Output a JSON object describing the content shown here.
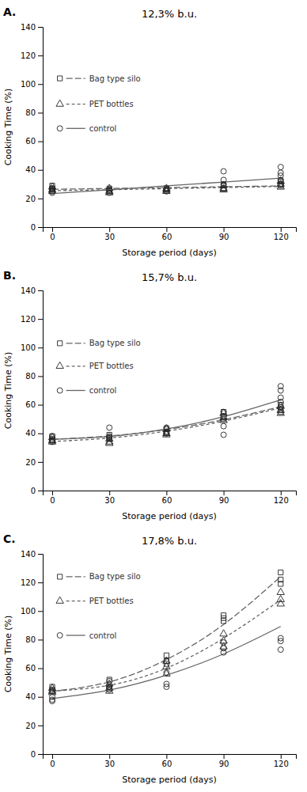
{
  "chart_data": [
    {
      "type": "line",
      "label": "A.",
      "title": "12,3% b.u.",
      "xlabel": "Storage period (days)",
      "ylabel": "Cooking Time (%)",
      "xlim": [
        -5,
        128
      ],
      "xticks": [
        0,
        30,
        60,
        90,
        120
      ],
      "ylim": [
        0,
        140
      ],
      "yticks": [
        0,
        20,
        40,
        60,
        80,
        100,
        120,
        140
      ],
      "color": "#666666",
      "legend": "upper left",
      "series": [
        {
          "name": "Bag type silo",
          "line_style": "long_dash",
          "marker": "square",
          "x": [
            0,
            30,
            60,
            90,
            120
          ],
          "values": [
            26.4,
            27.0,
            27.6,
            28.2,
            28.8
          ],
          "scatter": {
            "x": [
              0,
              0,
              0,
              30,
              30,
              30,
              60,
              60,
              60,
              90,
              90,
              90,
              120,
              120,
              120
            ],
            "y": [
              26,
              27,
              29,
              25,
              26,
              27,
              26,
              27,
              27,
              27,
              27,
              29,
              29,
              30,
              32
            ]
          },
          "legend_point": {
            "x": 4,
            "y": 104
          }
        },
        {
          "name": "PET bottles",
          "line_style": "dash",
          "marker": "triangle",
          "x": [
            0,
            30,
            60,
            90,
            120
          ],
          "values": [
            25.4,
            26.15,
            26.9,
            27.65,
            28.4
          ],
          "scatter": {
            "x": [
              0,
              0,
              0,
              30,
              30,
              30,
              60,
              60,
              60,
              90,
              90,
              90,
              120,
              120,
              120
            ],
            "y": [
              25,
              26,
              28,
              24,
              25,
              27,
              25,
              26,
              27,
              26,
              27,
              29,
              28,
              30,
              32
            ]
          },
          "legend_point": {
            "x": 4,
            "y": 86
          }
        },
        {
          "name": "control",
          "line_style": "solid",
          "marker": "circle",
          "x": [
            0,
            30,
            60,
            90,
            120
          ],
          "values": [
            23.4,
            26.1,
            28.8,
            31.5,
            34.2
          ],
          "scatter": {
            "x": [
              0,
              0,
              0,
              30,
              30,
              60,
              60,
              90,
              90,
              90,
              120,
              120,
              120,
              120,
              120
            ],
            "y": [
              24,
              25,
              27,
              24,
              26,
              25,
              27,
              30,
              33,
              39,
              30,
              33,
              36,
              38,
              42
            ]
          },
          "legend_point": {
            "x": 4,
            "y": 69
          }
        }
      ]
    },
    {
      "type": "line",
      "label": "B.",
      "title": "15,7% b.u.",
      "xlabel": "Storage period (days)",
      "ylabel": "Cooking Time (%)",
      "xlim": [
        -5,
        128
      ],
      "xticks": [
        0,
        30,
        60,
        90,
        120
      ],
      "ylim": [
        0,
        140
      ],
      "yticks": [
        0,
        20,
        40,
        60,
        80,
        100,
        120,
        140
      ],
      "color": "#666666",
      "legend": "upper left",
      "series": [
        {
          "name": "Bag type silo",
          "line_style": "long_dash",
          "marker": "square",
          "x": [
            0,
            30,
            60,
            90,
            120
          ],
          "values": [
            35.885714,
            38.157143,
            42.714286,
            49.557143,
            58.685714
          ],
          "scatter": {
            "x": [
              0,
              0,
              0,
              30,
              30,
              30,
              60,
              60,
              60,
              90,
              90,
              90,
              120,
              120,
              120
            ],
            "y": [
              35,
              36,
              38,
              36,
              37,
              39,
              40,
              41,
              43,
              50,
              52,
              55,
              55,
              57,
              60
            ]
          },
          "legend_point": {
            "x": 4,
            "y": 103
          }
        },
        {
          "name": "PET bottles",
          "line_style": "dash",
          "marker": "triangle",
          "x": [
            0,
            30,
            60,
            90,
            120
          ],
          "values": [
            34.285714,
            36.757143,
            41.514286,
            48.557143,
            57.885714
          ],
          "scatter": {
            "x": [
              0,
              0,
              0,
              30,
              30,
              30,
              60,
              60,
              60,
              90,
              90,
              90,
              120,
              120,
              120
            ],
            "y": [
              34,
              35,
              37,
              33,
              34,
              36,
              39,
              40,
              43,
              49,
              51,
              54,
              54,
              56,
              59
            ]
          },
          "legend_point": {
            "x": 4,
            "y": 87
          }
        },
        {
          "name": "control",
          "line_style": "solid",
          "marker": "circle",
          "x": [
            0,
            30,
            60,
            90,
            120
          ],
          "values": [
            35.885714,
            37.857143,
            43.114286,
            51.657143,
            63.485714
          ],
          "scatter": {
            "x": [
              0,
              0,
              0,
              30,
              30,
              30,
              60,
              60,
              60,
              90,
              90,
              90,
              90,
              120,
              120,
              120,
              120,
              120
            ],
            "y": [
              34,
              35,
              38,
              37,
              38,
              44,
              40,
              41,
              44,
              39,
              45,
              52,
              55,
              58,
              62,
              65,
              70,
              73
            ]
          },
          "legend_point": {
            "x": 4,
            "y": 70
          }
        }
      ]
    },
    {
      "type": "line",
      "label": "C.",
      "title": "17,8% b.u.",
      "xlabel": "Storage period (days)",
      "ylabel": "Cooking Time (%)",
      "xlim": [
        -5,
        128
      ],
      "xticks": [
        0,
        30,
        60,
        90,
        120
      ],
      "ylim": [
        0,
        140
      ],
      "yticks": [
        0,
        20,
        40,
        60,
        80,
        100,
        120,
        140
      ],
      "color": "#666666",
      "legend": "upper left",
      "series": [
        {
          "name": "Bag type silo",
          "line_style": "long_dash",
          "marker": "square",
          "x": [
            0,
            30,
            60,
            90,
            120
          ],
          "values": [
            43.828571,
            50.485714,
            66.071429,
            90.585714,
            124.028571
          ],
          "scatter": {
            "x": [
              0,
              0,
              0,
              30,
              30,
              30,
              60,
              60,
              60,
              90,
              90,
              90,
              120,
              120,
              120
            ],
            "y": [
              44,
              45,
              47,
              46,
              47,
              52,
              63,
              65,
              69,
              93,
              95,
              97,
              119,
              122,
              127
            ]
          },
          "legend_point": {
            "x": 4,
            "y": 124
          }
        },
        {
          "name": "PET bottles",
          "line_style": "dash",
          "marker": "triangle",
          "x": [
            0,
            30,
            60,
            90,
            120
          ],
          "values": [
            44.028571,
            48.085714,
            60.071429,
            80.985714,
            107.828571
          ],
          "scatter": {
            "x": [
              0,
              0,
              0,
              30,
              30,
              30,
              60,
              60,
              60,
              90,
              90,
              90,
              120,
              120,
              120
            ],
            "y": [
              43,
              44,
              46,
              44,
              46,
              49,
              56,
              61,
              65,
              75,
              79,
              84,
              105,
              108,
              113
            ]
          },
          "legend_point": {
            "x": 4,
            "y": 107
          }
        },
        {
          "name": "control",
          "line_style": "solid",
          "marker": "circle",
          "x": [
            0,
            30,
            60,
            90,
            120
          ],
          "values": [
            38.828571,
            44.785714,
            55.171429,
            69.985714,
            89.228571
          ],
          "scatter": {
            "x": [
              0,
              0,
              0,
              30,
              30,
              30,
              60,
              60,
              60,
              90,
              90,
              90,
              120,
              120,
              120
            ],
            "y": [
              37,
              38,
              40,
              45,
              47,
              51,
              47,
              49,
              57,
              71,
              74,
              78,
              73,
              79,
              81
            ]
          },
          "legend_point": {
            "x": 4,
            "y": 83
          }
        }
      ]
    }
  ]
}
